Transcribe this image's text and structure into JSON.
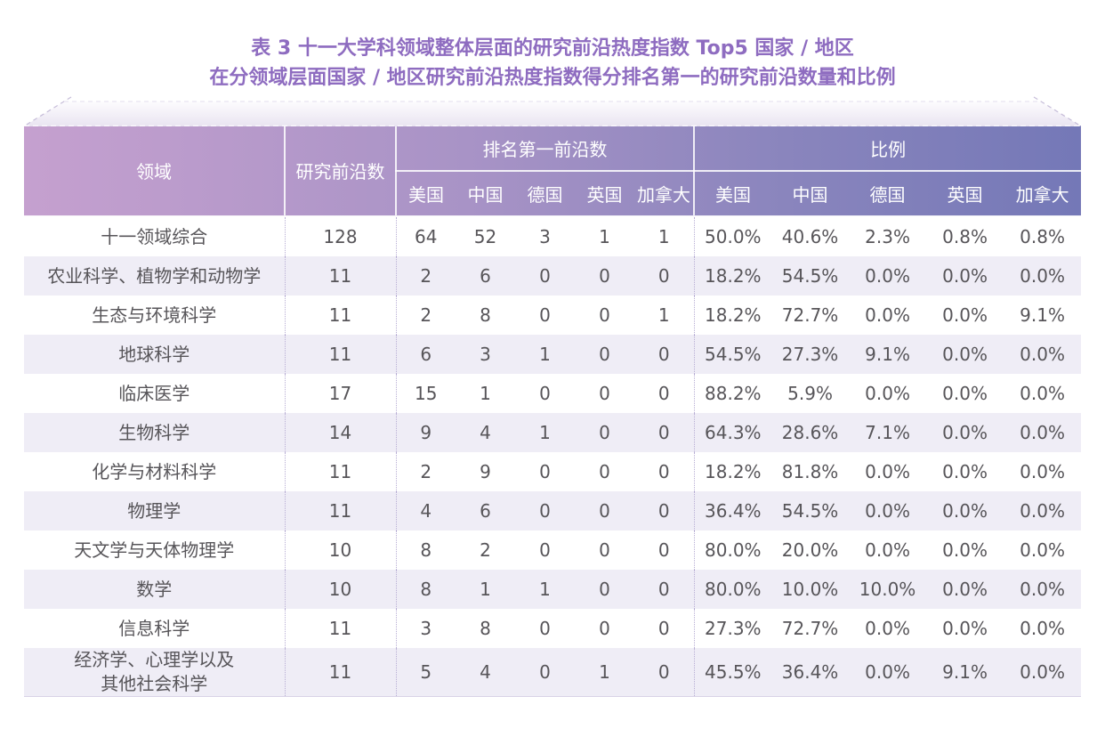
{
  "title": {
    "line1": "表 3 十一大学科领域整体层面的研究前沿热度指数 Top5 国家 / 地区",
    "line2": "在分领域层面国家 / 地区研究前沿热度指数得分排名第一的研究前沿数量和比例"
  },
  "table": {
    "headers": {
      "field": "领域",
      "front_count": "研究前沿数",
      "rank_first_group": "排名第一前沿数",
      "ratio_group": "比例",
      "countries": [
        "美国",
        "中国",
        "德国",
        "英国",
        "加拿大"
      ]
    },
    "rows": [
      {
        "field": "十一领域综合",
        "front_count": "128",
        "rank_first": [
          "64",
          "52",
          "3",
          "1",
          "1"
        ],
        "ratio": [
          "50.0%",
          "40.6%",
          "2.3%",
          "0.8%",
          "0.8%"
        ]
      },
      {
        "field": "农业科学、植物学和动物学",
        "front_count": "11",
        "rank_first": [
          "2",
          "6",
          "0",
          "0",
          "0"
        ],
        "ratio": [
          "18.2%",
          "54.5%",
          "0.0%",
          "0.0%",
          "0.0%"
        ]
      },
      {
        "field": "生态与环境科学",
        "front_count": "11",
        "rank_first": [
          "2",
          "8",
          "0",
          "0",
          "1"
        ],
        "ratio": [
          "18.2%",
          "72.7%",
          "0.0%",
          "0.0%",
          "9.1%"
        ]
      },
      {
        "field": "地球科学",
        "front_count": "11",
        "rank_first": [
          "6",
          "3",
          "1",
          "0",
          "0"
        ],
        "ratio": [
          "54.5%",
          "27.3%",
          "9.1%",
          "0.0%",
          "0.0%"
        ]
      },
      {
        "field": "临床医学",
        "front_count": "17",
        "rank_first": [
          "15",
          "1",
          "0",
          "0",
          "0"
        ],
        "ratio": [
          "88.2%",
          "5.9%",
          "0.0%",
          "0.0%",
          "0.0%"
        ]
      },
      {
        "field": "生物科学",
        "front_count": "14",
        "rank_first": [
          "9",
          "4",
          "1",
          "0",
          "0"
        ],
        "ratio": [
          "64.3%",
          "28.6%",
          "7.1%",
          "0.0%",
          "0.0%"
        ]
      },
      {
        "field": "化学与材料科学",
        "front_count": "11",
        "rank_first": [
          "2",
          "9",
          "0",
          "0",
          "0"
        ],
        "ratio": [
          "18.2%",
          "81.8%",
          "0.0%",
          "0.0%",
          "0.0%"
        ]
      },
      {
        "field": "物理学",
        "front_count": "11",
        "rank_first": [
          "4",
          "6",
          "0",
          "0",
          "0"
        ],
        "ratio": [
          "36.4%",
          "54.5%",
          "0.0%",
          "0.0%",
          "0.0%"
        ]
      },
      {
        "field": "天文学与天体物理学",
        "front_count": "10",
        "rank_first": [
          "8",
          "2",
          "0",
          "0",
          "0"
        ],
        "ratio": [
          "80.0%",
          "20.0%",
          "0.0%",
          "0.0%",
          "0.0%"
        ]
      },
      {
        "field": "数学",
        "front_count": "10",
        "rank_first": [
          "8",
          "1",
          "1",
          "0",
          "0"
        ],
        "ratio": [
          "80.0%",
          "10.0%",
          "10.0%",
          "0.0%",
          "0.0%"
        ]
      },
      {
        "field": "信息科学",
        "front_count": "11",
        "rank_first": [
          "3",
          "8",
          "0",
          "0",
          "0"
        ],
        "ratio": [
          "27.3%",
          "72.7%",
          "0.0%",
          "0.0%",
          "0.0%"
        ]
      },
      {
        "field": "经济学、心理学以及\n其他社会科学",
        "front_count": "11",
        "rank_first": [
          "5",
          "4",
          "0",
          "1",
          "0"
        ],
        "ratio": [
          "45.5%",
          "36.4%",
          "0.0%",
          "9.1%",
          "0.0%"
        ]
      }
    ]
  },
  "colors": {
    "title_purple": "#8e6cc0",
    "header_gradient_left": "#c5a0cf",
    "header_gradient_right": "#7478b7",
    "stripe_row": "#efedf6",
    "body_text": "#575559",
    "dotted_divider": "#b8aed4"
  }
}
